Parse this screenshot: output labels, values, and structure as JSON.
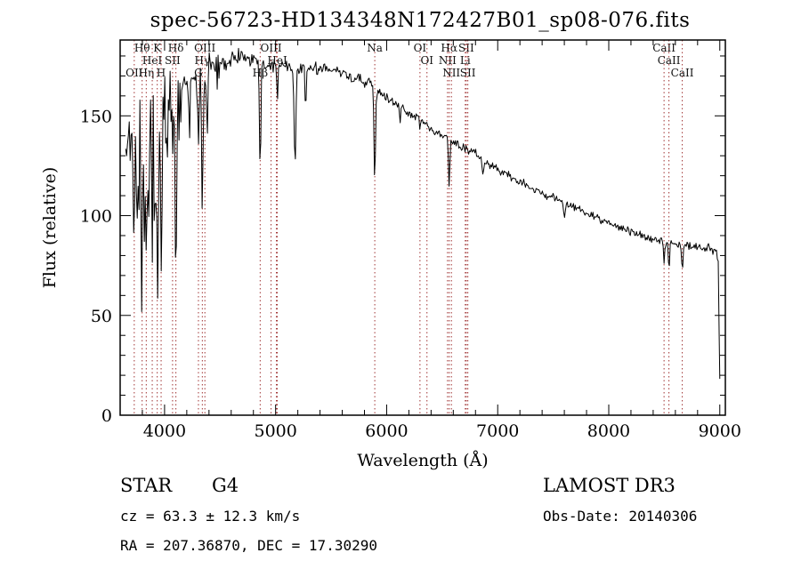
{
  "window": {
    "background": "#ffffff"
  },
  "chart_data": {
    "type": "line",
    "title": "spec-56723-HD134348N172427B01_sp08-076.fits",
    "xlabel": "Wavelength (Å)",
    "ylabel": "Flux (relative)",
    "xlim": [
      3600,
      9050
    ],
    "ylim": [
      0,
      188
    ],
    "xticks": [
      4000,
      5000,
      6000,
      7000,
      8000,
      9000
    ],
    "yticks": [
      0,
      50,
      100,
      150
    ],
    "x_minor_step": 200,
    "y_minor_step": 10,
    "grid": false,
    "line_color": "#000000",
    "marker_color": "#a03333",
    "spectrum": {
      "start": 3650,
      "end": 9000,
      "step": 8,
      "continuum": [
        [
          3650,
          126
        ],
        [
          3700,
          129
        ],
        [
          3750,
          132
        ],
        [
          3800,
          136
        ],
        [
          3850,
          140
        ],
        [
          3900,
          145
        ],
        [
          3950,
          149
        ],
        [
          4000,
          152
        ],
        [
          4050,
          155
        ],
        [
          4100,
          157
        ],
        [
          4150,
          161
        ],
        [
          4200,
          164
        ],
        [
          4250,
          166
        ],
        [
          4300,
          168
        ],
        [
          4350,
          170
        ],
        [
          4400,
          172
        ],
        [
          4450,
          173
        ],
        [
          4500,
          175
        ],
        [
          4550,
          176
        ],
        [
          4600,
          177
        ],
        [
          4650,
          179
        ],
        [
          4700,
          180
        ],
        [
          4750,
          179
        ],
        [
          4800,
          178
        ],
        [
          4860,
          177
        ],
        [
          4900,
          176
        ],
        [
          4950,
          175
        ],
        [
          5000,
          175
        ],
        [
          5050,
          176
        ],
        [
          5100,
          175
        ],
        [
          5150,
          174
        ],
        [
          5200,
          173
        ],
        [
          5250,
          174
        ],
        [
          5300,
          173
        ],
        [
          5350,
          174
        ],
        [
          5400,
          173
        ],
        [
          5450,
          174
        ],
        [
          5500,
          173
        ],
        [
          5550,
          172
        ],
        [
          5600,
          171
        ],
        [
          5650,
          170
        ],
        [
          5700,
          169
        ],
        [
          5750,
          168
        ],
        [
          5800,
          167
        ],
        [
          5850,
          166
        ],
        [
          5900,
          164
        ],
        [
          5950,
          162
        ],
        [
          6000,
          159
        ],
        [
          6100,
          155
        ],
        [
          6200,
          151
        ],
        [
          6300,
          148
        ],
        [
          6400,
          144
        ],
        [
          6500,
          140
        ],
        [
          6600,
          137
        ],
        [
          6700,
          134
        ],
        [
          6800,
          131
        ],
        [
          6900,
          127
        ],
        [
          7000,
          123
        ],
        [
          7100,
          120
        ],
        [
          7200,
          117
        ],
        [
          7300,
          114
        ],
        [
          7400,
          111
        ],
        [
          7500,
          109
        ],
        [
          7600,
          106
        ],
        [
          7700,
          104
        ],
        [
          7800,
          101
        ],
        [
          7900,
          99
        ],
        [
          8000,
          96
        ],
        [
          8100,
          94
        ],
        [
          8200,
          92
        ],
        [
          8300,
          90
        ],
        [
          8400,
          88
        ],
        [
          8500,
          87
        ],
        [
          8600,
          86
        ],
        [
          8700,
          85
        ],
        [
          8800,
          84
        ],
        [
          8900,
          83
        ],
        [
          8950,
          82
        ],
        [
          8985,
          80
        ],
        [
          9000,
          16
        ]
      ],
      "absorption_lines": [
        [
          3727,
          55,
          5
        ],
        [
          3750,
          40,
          4
        ],
        [
          3770,
          45,
          4
        ],
        [
          3798,
          75,
          5
        ],
        [
          3820,
          50,
          4
        ],
        [
          3835,
          80,
          5
        ],
        [
          3860,
          55,
          4
        ],
        [
          3889,
          75,
          5
        ],
        [
          3910,
          40,
          4
        ],
        [
          3934,
          100,
          6
        ],
        [
          3969,
          90,
          6
        ],
        [
          4026,
          30,
          4
        ],
        [
          4072,
          35,
          4
        ],
        [
          4102,
          85,
          6
        ],
        [
          4144,
          25,
          4
        ],
        [
          4226,
          25,
          4
        ],
        [
          4305,
          35,
          7
        ],
        [
          4340,
          70,
          6
        ],
        [
          4383,
          30,
          4
        ],
        [
          4861,
          58,
          6
        ],
        [
          5015,
          20,
          4
        ],
        [
          5175,
          48,
          8
        ],
        [
          5270,
          20,
          5
        ],
        [
          5893,
          46,
          7
        ],
        [
          6122,
          8,
          4
        ],
        [
          6300,
          6,
          4
        ],
        [
          6563,
          24,
          6
        ],
        [
          6867,
          8,
          6
        ],
        [
          7600,
          8,
          8
        ],
        [
          8498,
          12,
          5
        ],
        [
          8542,
          14,
          5
        ],
        [
          8662,
          13,
          5
        ]
      ],
      "noise_profile": [
        [
          3950,
          30
        ],
        [
          4150,
          18
        ],
        [
          4500,
          10
        ],
        [
          4800,
          5
        ],
        [
          6000,
          2.8
        ],
        [
          7500,
          2
        ],
        [
          8700,
          1.8
        ],
        [
          9050,
          2.5
        ]
      ]
    },
    "line_markers": [
      {
        "label": "OII",
        "wavelength": 3727,
        "row": 2
      },
      {
        "label": "Hθ",
        "wavelength": 3798,
        "row": 0
      },
      {
        "label": "Hη",
        "wavelength": 3835,
        "row": 2
      },
      {
        "label": "HeI",
        "wavelength": 3889,
        "row": 1
      },
      {
        "label": "K",
        "wavelength": 3934,
        "row": 0
      },
      {
        "label": "H",
        "wavelength": 3969,
        "row": 2
      },
      {
        "label": "SII",
        "wavelength": 4072,
        "row": 1
      },
      {
        "label": "Hδ",
        "wavelength": 4102,
        "row": 0
      },
      {
        "label": "G",
        "wavelength": 4305,
        "row": 2
      },
      {
        "label": "Hγ",
        "wavelength": 4340,
        "row": 1
      },
      {
        "label": "OIII",
        "wavelength": 4363,
        "row": 0
      },
      {
        "label": "Hβ",
        "wavelength": 4861,
        "row": 2
      },
      {
        "label": "OIII",
        "wavelength": 4959,
        "row": 0
      },
      {
        "label": "HeI",
        "wavelength": 5015,
        "row": 1
      },
      {
        "label": "",
        "wavelength": 5007,
        "row": 0
      },
      {
        "label": "Na",
        "wavelength": 5893,
        "row": 0
      },
      {
        "label": "OI",
        "wavelength": 6300,
        "row": 0
      },
      {
        "label": "OI",
        "wavelength": 6363,
        "row": 1
      },
      {
        "label": "NII",
        "wavelength": 6548,
        "row": 1
      },
      {
        "label": "Hα",
        "wavelength": 6563,
        "row": 0
      },
      {
        "label": "NII",
        "wavelength": 6583,
        "row": 2
      },
      {
        "label": "Li",
        "wavelength": 6708,
        "row": 1
      },
      {
        "label": "SII",
        "wavelength": 6717,
        "row": 0
      },
      {
        "label": "SII",
        "wavelength": 6731,
        "row": 2
      },
      {
        "label": "CaII",
        "wavelength": 8498,
        "row": 0
      },
      {
        "label": "CaII",
        "wavelength": 8542,
        "row": 1
      },
      {
        "label": "CaII",
        "wavelength": 8662,
        "row": 2
      }
    ]
  },
  "annotations": {
    "object_type": "STAR",
    "subclass": "G4",
    "survey": "LAMOST DR3",
    "cz": "cz = 63.3 ± 12.3 km/s",
    "obs_date": "Obs-Date: 20140306",
    "ra_dec": "RA = 207.36870, DEC =  17.30290"
  }
}
